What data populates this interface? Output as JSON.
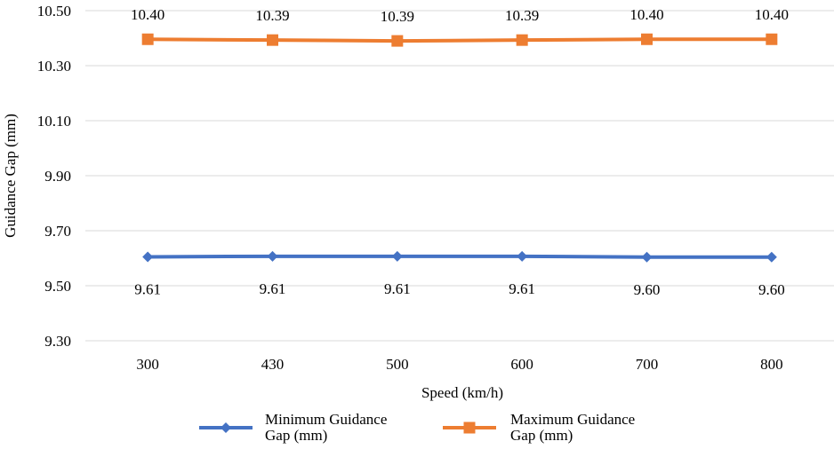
{
  "chart_data": {
    "type": "line",
    "categories": [
      "300",
      "430",
      "500",
      "600",
      "700",
      "800"
    ],
    "xlabel": "Speed (km/h)",
    "ylabel": "Guidance Gap (mm)",
    "ylim": [
      9.3,
      10.5
    ],
    "yticks": [
      "9.30",
      "9.50",
      "9.70",
      "9.90",
      "10.10",
      "10.30",
      "10.50"
    ],
    "grid": true,
    "legend_position": "bottom",
    "series": [
      {
        "name": "Minimum Guidance Gap (mm)",
        "legend_lines": [
          "Minimum Guidance",
          "Gap (mm)"
        ],
        "values": [
          9.605,
          9.607,
          9.607,
          9.607,
          9.604,
          9.604
        ],
        "labels": [
          "9.61",
          "9.61",
          "9.61",
          "9.61",
          "9.60",
          "9.60"
        ],
        "color": "#4472C4",
        "marker": "diamond",
        "label_position": "below"
      },
      {
        "name": "Maximum Guidance Gap (mm)",
        "legend_lines": [
          "Maximum Guidance",
          "Gap (mm)"
        ],
        "values": [
          10.396,
          10.393,
          10.39,
          10.393,
          10.396,
          10.396
        ],
        "labels": [
          "10.40",
          "10.39",
          "10.39",
          "10.39",
          "10.40",
          "10.40"
        ],
        "color": "#ED7D31",
        "marker": "square",
        "label_position": "above"
      }
    ]
  }
}
